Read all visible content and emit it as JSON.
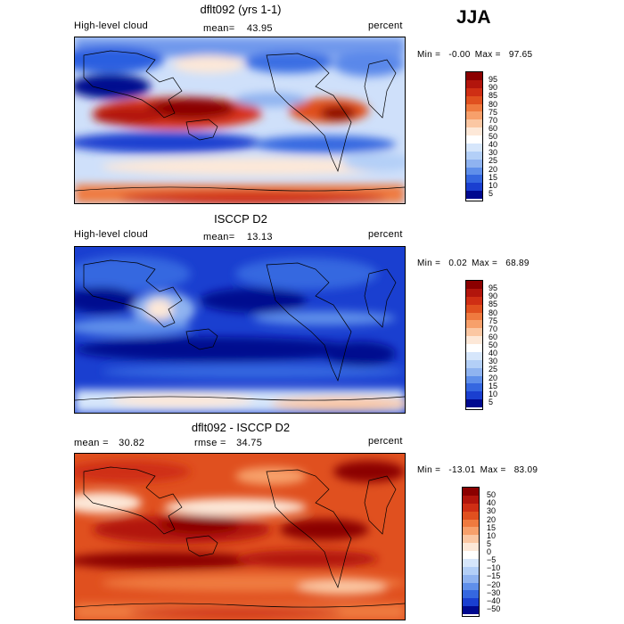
{
  "season": "JJA",
  "panels": [
    {
      "title": "dflt092 (yrs 1-1)",
      "left_label": "High-level cloud",
      "stat1_label": "mean=",
      "stat1_value": "43.95",
      "stat2_label": "",
      "stat2_value": "",
      "units": "percent",
      "min_label": "Min =",
      "min_value": "-0.00",
      "max_label": "Max =",
      "max_value": "97.65",
      "colorbar_levels": [
        "95",
        "90",
        "85",
        "80",
        "75",
        "70",
        "60",
        "50",
        "40",
        "30",
        "25",
        "20",
        "15",
        "10",
        "5"
      ],
      "colorbar_colors": [
        "#8b0000",
        "#b2150c",
        "#cf2e14",
        "#e0501f",
        "#ef7a3f",
        "#f7a06b",
        "#fbc7a3",
        "#fde8d8",
        "#ffffff",
        "#d6e6fb",
        "#b3cff7",
        "#8fb3f0",
        "#5f8fea",
        "#3567e0",
        "#1a3fd0",
        "#00098f"
      ]
    },
    {
      "title": "ISCCP D2",
      "left_label": "High-level cloud",
      "stat1_label": "mean=",
      "stat1_value": "13.13",
      "stat2_label": "",
      "stat2_value": "",
      "units": "percent",
      "min_label": "Min =",
      "min_value": "0.02",
      "max_label": "Max =",
      "max_value": "68.89",
      "colorbar_levels": [
        "95",
        "90",
        "85",
        "80",
        "75",
        "70",
        "60",
        "50",
        "40",
        "30",
        "25",
        "20",
        "15",
        "10",
        "5"
      ],
      "colorbar_colors": [
        "#8b0000",
        "#b2150c",
        "#cf2e14",
        "#e0501f",
        "#ef7a3f",
        "#f7a06b",
        "#fbc7a3",
        "#fde8d8",
        "#ffffff",
        "#d6e6fb",
        "#b3cff7",
        "#8fb3f0",
        "#5f8fea",
        "#3567e0",
        "#1a3fd0",
        "#00098f"
      ]
    },
    {
      "title": "dflt092 - ISCCP D2",
      "left_label": "",
      "stat1_label": "mean =",
      "stat1_value": "30.82",
      "stat2_label": "rmse =",
      "stat2_value": "34.75",
      "units": "percent",
      "min_label": "Min =",
      "min_value": "-13.01",
      "max_label": "Max =",
      "max_value": "83.09",
      "colorbar_levels": [
        "50",
        "40",
        "30",
        "20",
        "15",
        "10",
        "5",
        "0",
        "−5",
        "−10",
        "−15",
        "−20",
        "−30",
        "−40",
        "−50"
      ],
      "colorbar_colors": [
        "#8b0000",
        "#b2150c",
        "#cf2e14",
        "#e0501f",
        "#ef7a3f",
        "#f7a06b",
        "#fbc7a3",
        "#fde8d8",
        "#ffffff",
        "#d6e6fb",
        "#b3cff7",
        "#8fb3f0",
        "#5f8fea",
        "#3567e0",
        "#1a3fd0",
        "#00098f"
      ]
    }
  ]
}
